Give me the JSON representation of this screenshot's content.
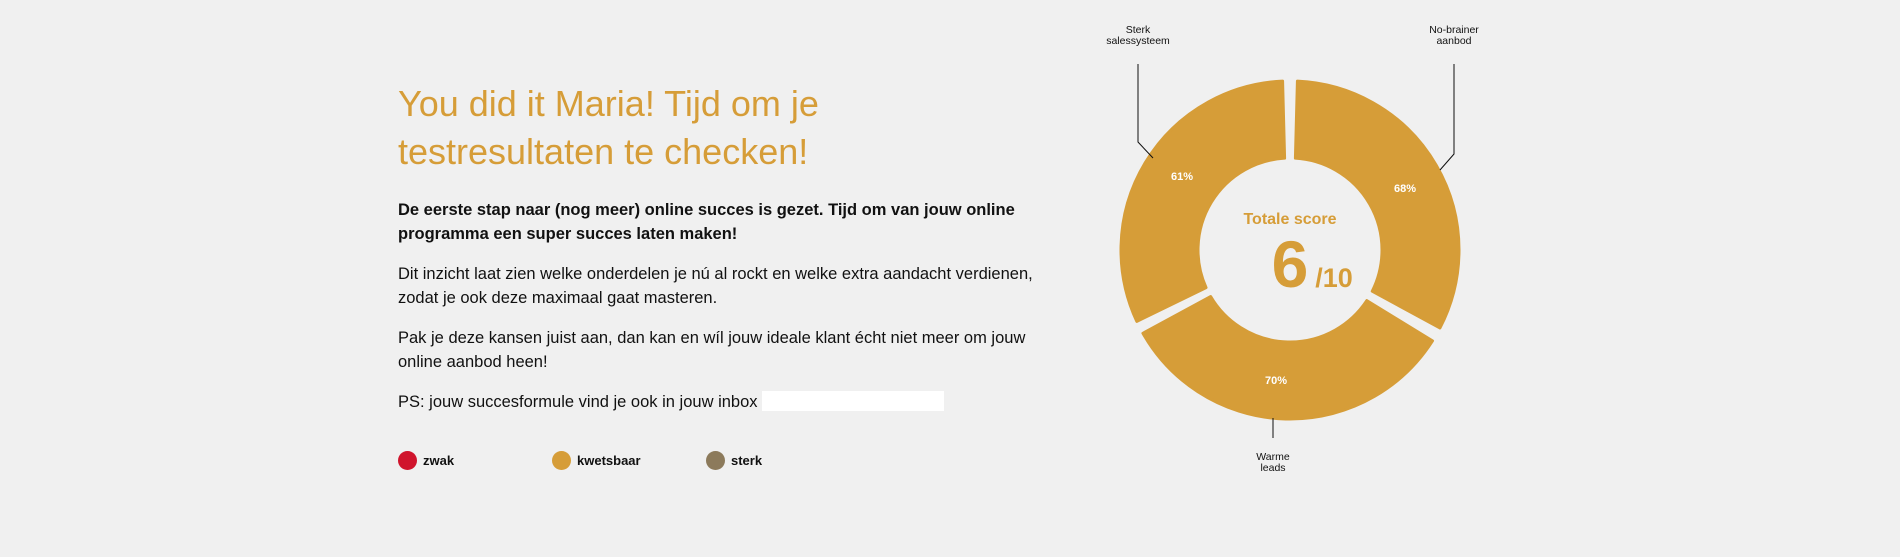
{
  "content": {
    "heading": "You did it Maria! Tijd om je testresultaten te checken!",
    "lead": "De eerste stap naar (nog meer) online succes is gezet. Tijd om van jouw online programma een super succes laten maken!",
    "paragraph1": "Dit inzicht laat zien welke onderdelen je nú al rockt en welke extra aandacht verdienen, zodat je ook deze maximaal gaat masteren.",
    "paragraph2": "Pak je deze kansen juist aan, dan kan en wíl jouw ideale klant écht niet meer om jouw online aanbod heen!",
    "ps": "PS: jouw succesformule vind je ook in jouw inbox"
  },
  "legend": [
    {
      "label": "zwak",
      "color": "#d0142c"
    },
    {
      "label": "kwetsbaar",
      "color": "#d69d38"
    },
    {
      "label": "sterk",
      "color": "#8c7a5b"
    }
  ],
  "chart_data": {
    "type": "donut",
    "center_title": "Totale score",
    "center_value": "6",
    "center_denominator": "/10",
    "segments": [
      {
        "label_line1": "Sterk",
        "label_line2": "salessysteem",
        "value": 61,
        "value_label": "61%",
        "category": "kwetsbaar",
        "color": "#d69d38"
      },
      {
        "label_line1": "No-brainer",
        "label_line2": "aanbod",
        "value": 68,
        "value_label": "68%",
        "category": "kwetsbaar",
        "color": "#d69d38"
      },
      {
        "label_line1": "Warme",
        "label_line2": "leads",
        "value": 70,
        "value_label": "70%",
        "category": "kwetsbaar",
        "color": "#d69d38"
      }
    ]
  }
}
